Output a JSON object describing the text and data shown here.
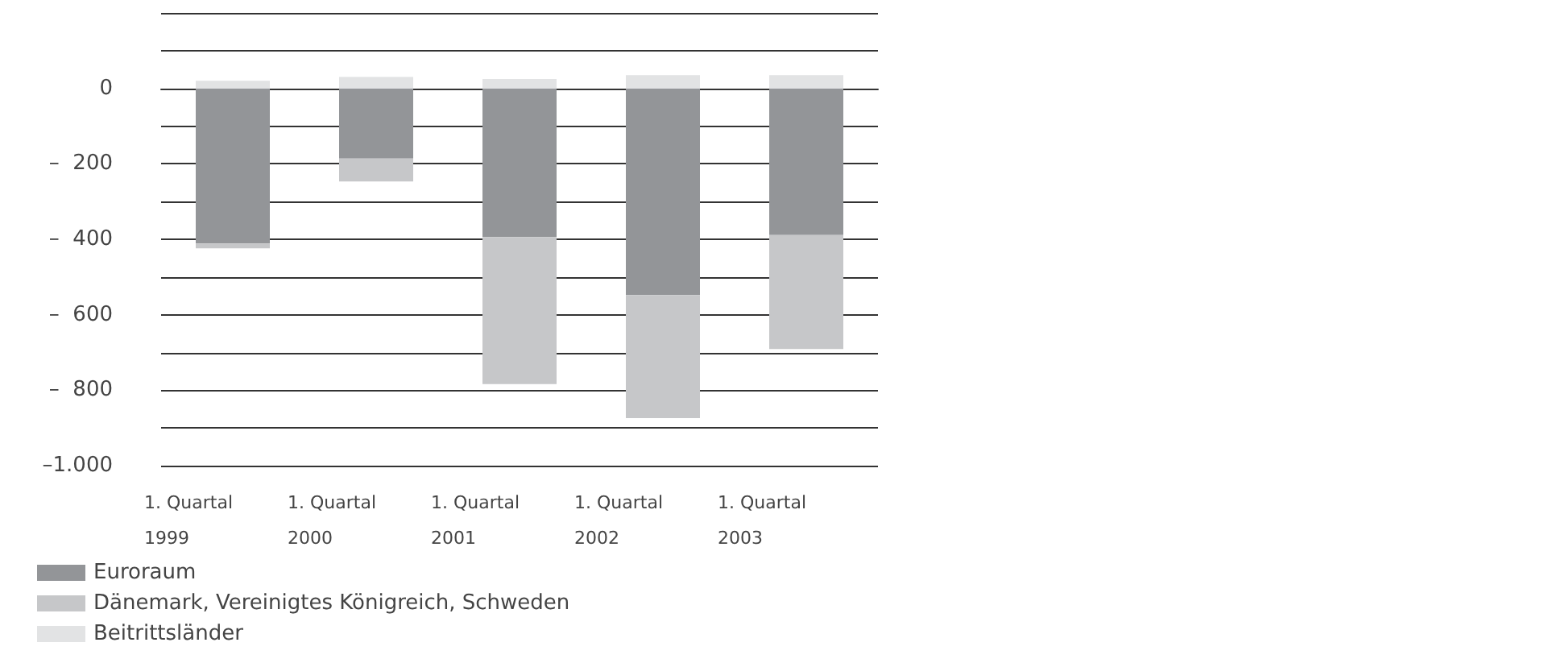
{
  "chart_data": {
    "type": "bar",
    "stacked": true,
    "categories": [
      "1. Quartal\n1999",
      "1. Quartal\n2000",
      "1. Quartal\n2001",
      "1. Quartal\n2002",
      "1. Quartal\n2003"
    ],
    "series": [
      {
        "name": "Euroraum",
        "color": "#939598",
        "values": [
          -411,
          -186,
          -394,
          -548,
          -389
        ]
      },
      {
        "name": "Dänemark, Vereinigtes Königreich, Schweden",
        "color": "#c6c7c9",
        "values": [
          -13,
          -61,
          -390,
          -326,
          -302
        ]
      },
      {
        "name": "Beitrittsländer",
        "color": "#e2e3e4",
        "values": [
          20,
          30,
          25,
          35,
          35
        ]
      }
    ],
    "ylim": [
      -1000,
      200
    ],
    "yticks": [
      {
        "value": 200,
        "label": null
      },
      {
        "value": 100,
        "label": null
      },
      {
        "value": 0,
        "label": "0"
      },
      {
        "value": -100,
        "label": null
      },
      {
        "value": -200,
        "label": "–  200"
      },
      {
        "value": -300,
        "label": null
      },
      {
        "value": -400,
        "label": "–  400"
      },
      {
        "value": -500,
        "label": null
      },
      {
        "value": -600,
        "label": "–  600"
      },
      {
        "value": -700,
        "label": null
      },
      {
        "value": -800,
        "label": "–  800"
      },
      {
        "value": -900,
        "label": null
      },
      {
        "value": -1000,
        "label": "–1.000"
      }
    ],
    "grid": true,
    "legend": "bottom left"
  }
}
